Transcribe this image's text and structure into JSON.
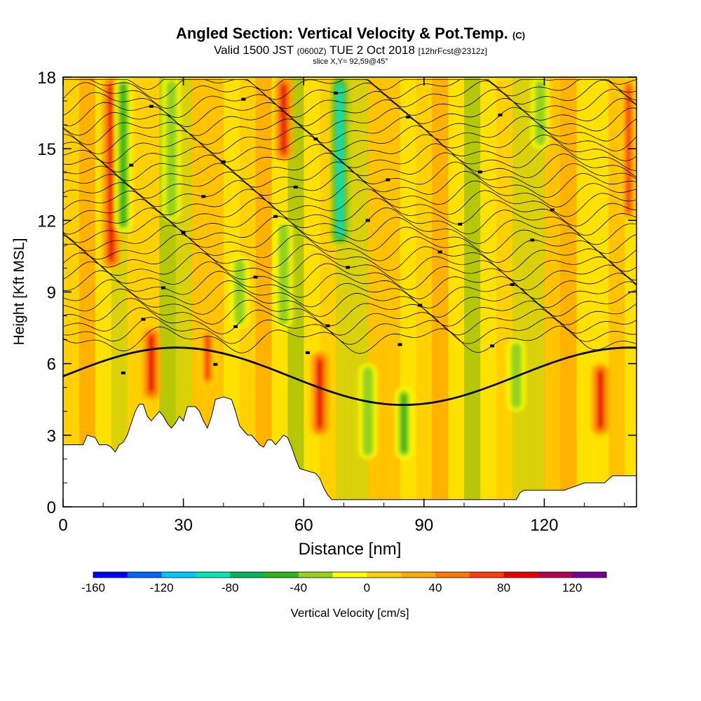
{
  "header": {
    "title": "Angled Section: Vertical Velocity & Pot.Temp.",
    "title_suffix": "(C)",
    "valid_prefix": "Valid 1500 JST",
    "valid_utc": "(0600Z)",
    "valid_date": "TUE 2 Oct 2018",
    "forecast_info": "[12hrFcst@2312z]",
    "slice_info": "slice X,Y= 92,59@45°"
  },
  "chart_data": {
    "type": "heatmap",
    "xlabel": "Distance [nm]",
    "ylabel": "Height [Kft MSL]",
    "xlim": [
      0,
      143
    ],
    "ylim": [
      0,
      18
    ],
    "x_ticks": [
      0,
      30,
      60,
      90,
      120
    ],
    "y_ticks": [
      0,
      3,
      6,
      9,
      12,
      15,
      18
    ],
    "colorbar": {
      "label": "Vertical Velocity [cm/s]",
      "min": -160,
      "max": 140,
      "step": 20,
      "tick_labels": [
        -160,
        -120,
        -80,
        -40,
        0,
        40,
        80,
        120
      ],
      "colors": [
        "#0000ff",
        "#0064ff",
        "#00c8ff",
        "#00e6b4",
        "#00b45a",
        "#32b414",
        "#96d21e",
        "#ffff00",
        "#ffd200",
        "#ffaa00",
        "#ff7800",
        "#ff3c00",
        "#e60000",
        "#b40050",
        "#780096"
      ]
    },
    "terrain_kft": [
      [
        0,
        2.6
      ],
      [
        5,
        2.6
      ],
      [
        6,
        3.0
      ],
      [
        8,
        2.9
      ],
      [
        9,
        2.6
      ],
      [
        11,
        2.6
      ],
      [
        12,
        2.5
      ],
      [
        13,
        2.3
      ],
      [
        14,
        2.6
      ],
      [
        15,
        2.7
      ],
      [
        16,
        3.0
      ],
      [
        17,
        3.5
      ],
      [
        18,
        4.0
      ],
      [
        19,
        4.3
      ],
      [
        20,
        4.3
      ],
      [
        21,
        3.8
      ],
      [
        22,
        3.6
      ],
      [
        23,
        3.8
      ],
      [
        24,
        4.0
      ],
      [
        25,
        3.8
      ],
      [
        26,
        3.5
      ],
      [
        27,
        3.3
      ],
      [
        28,
        3.5
      ],
      [
        29,
        3.8
      ],
      [
        30,
        3.6
      ],
      [
        31,
        4.2
      ],
      [
        33,
        4.2
      ],
      [
        34,
        4.0
      ],
      [
        35,
        3.6
      ],
      [
        36,
        3.3
      ],
      [
        37,
        3.8
      ],
      [
        38,
        4.5
      ],
      [
        40,
        4.6
      ],
      [
        42,
        4.5
      ],
      [
        43,
        4.0
      ],
      [
        44,
        3.4
      ],
      [
        45,
        3.2
      ],
      [
        46,
        3.0
      ],
      [
        47,
        3.0
      ],
      [
        48,
        2.8
      ],
      [
        49,
        2.6
      ],
      [
        50,
        2.5
      ],
      [
        51,
        2.8
      ],
      [
        52,
        2.8
      ],
      [
        53,
        2.6
      ],
      [
        54,
        2.8
      ],
      [
        55,
        3.0
      ],
      [
        56,
        2.9
      ],
      [
        57,
        2.5
      ],
      [
        58,
        2.0
      ],
      [
        59,
        1.6
      ],
      [
        61,
        1.5
      ],
      [
        63,
        1.4
      ],
      [
        64,
        1.2
      ],
      [
        65,
        0.8
      ],
      [
        66,
        0.5
      ],
      [
        67,
        0.3
      ],
      [
        70,
        0.3
      ],
      [
        80,
        0.3
      ],
      [
        95,
        0.3
      ],
      [
        110,
        0.3
      ],
      [
        113,
        0.3
      ],
      [
        114,
        0.6
      ],
      [
        115,
        0.7
      ],
      [
        120,
        0.7
      ],
      [
        125,
        0.7
      ],
      [
        130,
        1.0
      ],
      [
        135,
        1.0
      ],
      [
        137,
        1.3
      ],
      [
        141,
        1.3
      ],
      [
        143,
        1.3
      ]
    ],
    "updrafts": [
      {
        "x": 12,
        "z_bottom": 10,
        "z_top": 18,
        "w": 90
      },
      {
        "x": 22,
        "z_bottom": 4.5,
        "z_top": 7.5,
        "w": 80
      },
      {
        "x": 36,
        "z_bottom": 5,
        "z_top": 7.5,
        "w": 60
      },
      {
        "x": 55,
        "z_bottom": 14.5,
        "z_top": 18,
        "w": 80
      },
      {
        "x": 64,
        "z_bottom": 3,
        "z_top": 6.5,
        "w": 90
      },
      {
        "x": 134,
        "z_bottom": 3,
        "z_top": 6,
        "w": 90
      },
      {
        "x": 141,
        "z_bottom": 12,
        "z_top": 18,
        "w": 60
      }
    ],
    "downdrafts": [
      {
        "x": 15,
        "z_bottom": 11.5,
        "z_top": 18,
        "w": -50
      },
      {
        "x": 27,
        "z_bottom": 12,
        "z_top": 18,
        "w": -40
      },
      {
        "x": 44,
        "z_bottom": 7.5,
        "z_top": 10.5,
        "w": -40
      },
      {
        "x": 55,
        "z_bottom": 7.5,
        "z_top": 12,
        "w": -40
      },
      {
        "x": 69,
        "z_bottom": 11,
        "z_top": 18,
        "w": -90
      },
      {
        "x": 76,
        "z_bottom": 2,
        "z_top": 6,
        "w": -40
      },
      {
        "x": 85,
        "z_bottom": 2,
        "z_top": 5,
        "w": -50
      },
      {
        "x": 113,
        "z_bottom": 4,
        "z_top": 7,
        "w": -40
      },
      {
        "x": 119,
        "z_bottom": 15,
        "z_top": 18,
        "w": -40
      }
    ],
    "pot_temp_isentropes": {
      "count": 34,
      "label_marks": true
    }
  }
}
